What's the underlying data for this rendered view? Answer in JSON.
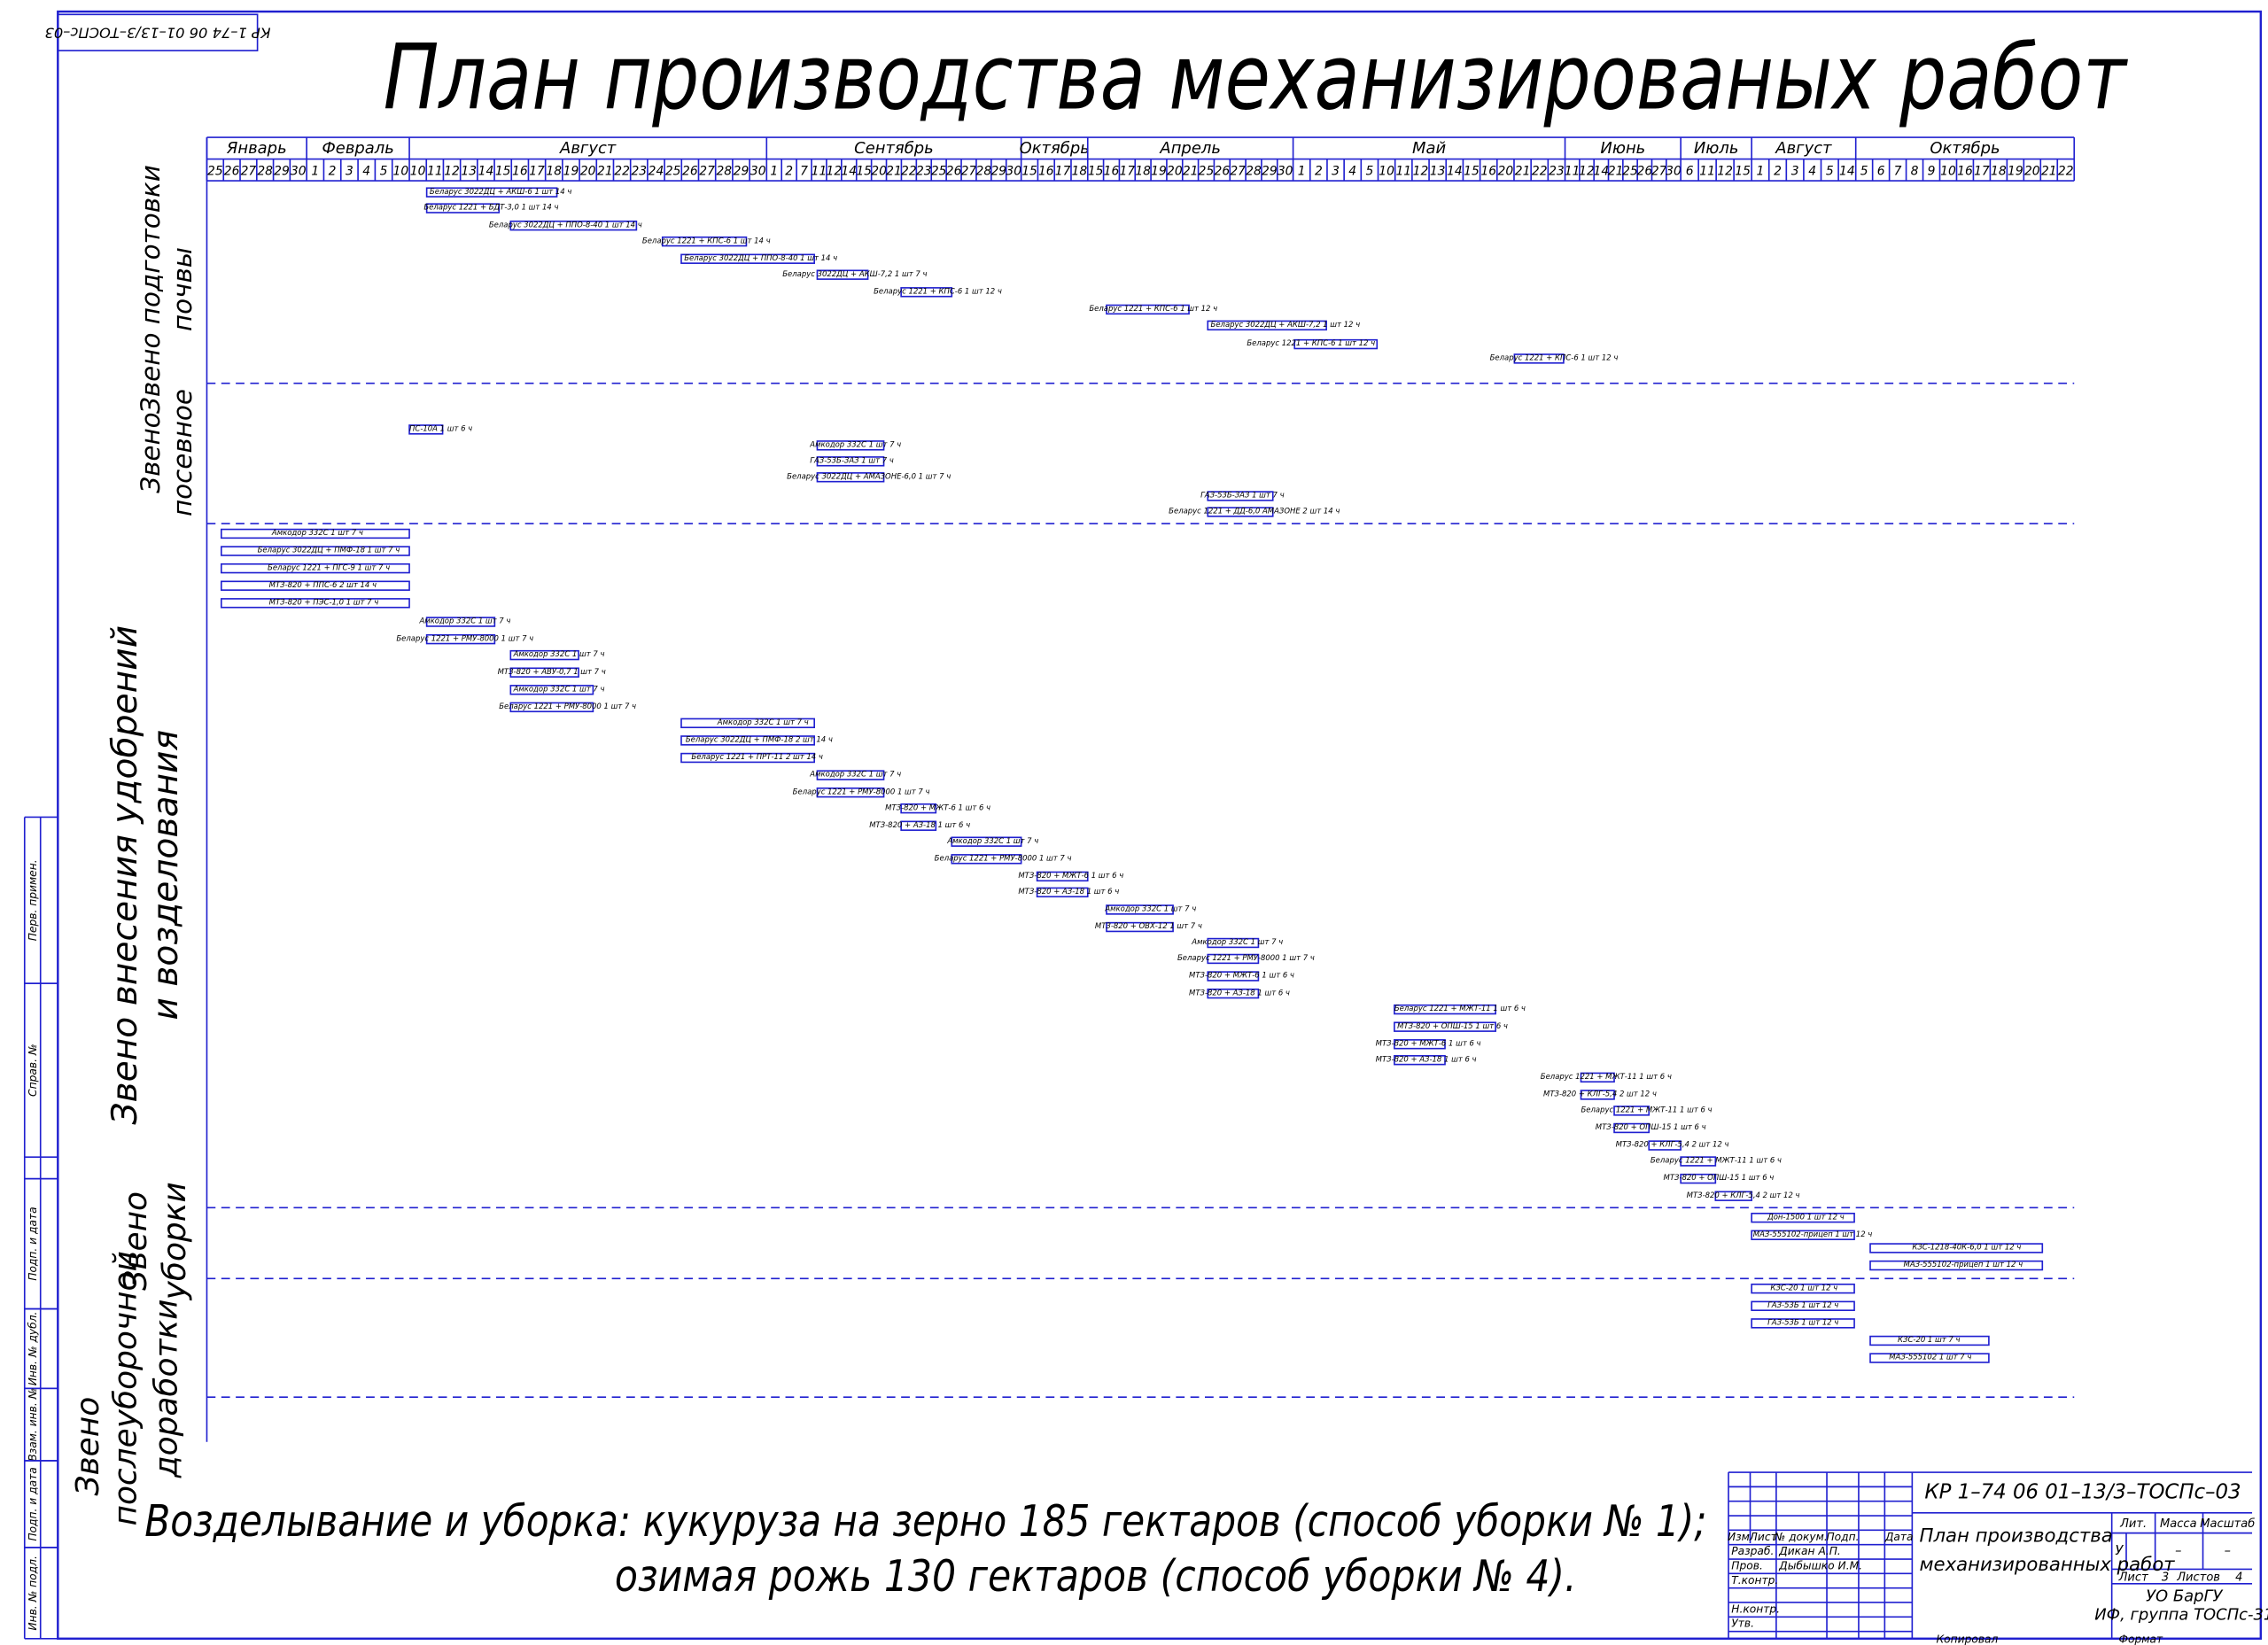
{
  "stamp_top": "КР 1–74 06 01–13/3–ТОСПс–03",
  "title": "План производства механизированых работ",
  "months": [
    {
      "name": "Январь",
      "days": [
        25,
        26,
        27,
        28,
        29,
        30
      ]
    },
    {
      "name": "Февраль",
      "days": [
        1,
        2,
        3,
        4,
        5,
        10
      ]
    },
    {
      "name": "Август",
      "days": [
        10,
        11,
        12,
        13,
        14,
        15,
        16,
        17,
        18,
        19,
        20,
        21,
        22,
        23,
        24,
        25,
        26,
        27,
        28,
        29,
        30
      ]
    },
    {
      "name": "Сентябрь",
      "days": [
        1,
        2,
        7,
        11,
        12,
        14,
        15,
        20,
        21,
        22,
        23,
        25,
        26,
        27,
        28,
        29,
        30
      ]
    },
    {
      "name": "Октябрь",
      "days": [
        15,
        16,
        17,
        18
      ]
    },
    {
      "name": "Апрель",
      "days": [
        15,
        16,
        17,
        18,
        19,
        20,
        21,
        25,
        26,
        27,
        28,
        29,
        30
      ]
    },
    {
      "name": "Май",
      "days": [
        1,
        2,
        3,
        4,
        5,
        10,
        11,
        12,
        13,
        14,
        15,
        16,
        20,
        21,
        22,
        23
      ]
    },
    {
      "name": "Июнь",
      "days": [
        11,
        12,
        14,
        21,
        25,
        26,
        27,
        30
      ]
    },
    {
      "name": "Июль",
      "days": [
        6,
        11,
        12,
        15
      ]
    },
    {
      "name": "Август",
      "days": [
        1,
        2,
        3,
        4,
        5,
        14
      ]
    },
    {
      "name": "Октябрь",
      "days": [
        5,
        6,
        7,
        8,
        9,
        10,
        16,
        17,
        18,
        19,
        20,
        21,
        22
      ]
    }
  ],
  "sections": [
    {
      "lines": [
        "Звено подготовки",
        "почвы"
      ]
    },
    {
      "lines": [
        "Звено",
        "посевное"
      ]
    },
    {
      "lines": [
        "Звено внесения удобрений",
        "и возделования"
      ]
    },
    {
      "lines": [
        "Звено",
        "уборки"
      ]
    },
    {
      "lines": [
        "Звено",
        "послеуборочной",
        "доработки"
      ]
    }
  ],
  "tasks": [
    "Беларус 3022ДЦ + АКШ-6 1 шт 14 ч",
    "Беларус 1221 + БДТ-3,0 1 шт 14 ч",
    "Беларус 3022ДЦ + ППО-8-40 1 шт 14 ч",
    "Беларус 1221 + КПС-6 1 шт 14 ч",
    "Беларус 3022ДЦ + ППО-8-40 1 шт 14 ч",
    "Беларус 3022ДЦ + АКШ-7,2 1 шт 7 ч",
    "Беларус 1221 + КПС-6 1 шт 12 ч",
    "Беларус 1221 + КПС-6 1 шт 12 ч",
    "Беларус 3022ДЦ + АКШ-7,2 1 шт 12 ч",
    "Беларус 1221 + КПС-6 1 шт 12 ч",
    "Беларус 1221 + КПС-6 1 шт 12 ч",
    "ПС-10А 1 шт 6 ч",
    "Амкодор 332С 1 шт 7 ч",
    "ГАЗ-53Б-ЗАЗ 1 шт 7 ч",
    "Беларус 3022ДЦ + АМАЗОНЕ-6,0 1 шт 7 ч",
    "ГАЗ-53Б-ЗАЗ 1 шт 7 ч",
    "Беларус 1221 + ДД-6,0 АМАЗОНЕ 2 шт 14 ч",
    "Амкодор 332С 1 шт 7 ч",
    "Беларус 3022ДЦ + ПМФ-18 1 шт 7 ч",
    "Беларус 1221 + ПГС-9 1 шт 7 ч",
    "МТЗ-820 + ППС-6 2 шт 14 ч",
    "МТЗ-820 + ПЭС-1,0 1 шт 7 ч",
    "Амкодор 332С 1 шт 7 ч",
    "Беларус 1221 + РМУ-8000 1 шт 7 ч",
    "Амкодор 332С 1 шт 7 ч",
    "МТЗ-820 + АВУ-0,7 1 шт 7 ч",
    "Амкодор 332С 1 шт 7 ч",
    "Беларус 1221 + РМУ-8000 1 шт 7 ч",
    "Амкодор 332С 1 шт 7 ч",
    "Беларус 3022ДЦ + ПМФ-18 2 шт 14 ч",
    "Беларус 1221 + ПРТ-11 2 шт 14 ч",
    "Амкодор 332С 1 шт 7 ч",
    "Беларус 1221 + РМУ-8000 1 шт 7 ч",
    "МТЗ-820 + МЖТ-6 1 шт 6 ч",
    "МТЗ-820 + АЗ-18 1 шт 6 ч",
    "Амкодор 332С 1 шт 7 ч",
    "Беларус 1221 + РМУ-8000 1 шт 7 ч",
    "МТЗ-820 + МЖТ-6 1 шт 6 ч",
    "МТЗ-820 + АЗ-18 1 шт 6 ч",
    "Амкодор 332С 1 шт 7 ч",
    "МТЗ-820 + ОВХ-12 1 шт 7 ч",
    "Амкодор 332С 1 шт 7 ч",
    "Беларус 1221 + РМУ-8000 1 шт 7 ч",
    "МТЗ-820 + МЖТ-6 1 шт 6 ч",
    "МТЗ-820 + АЗ-18 1 шт 6 ч",
    "Беларус 1221 + МЖТ-11 1 шт 6 ч",
    "МТЗ-820 + ОПШ-15 1 шт 6 ч",
    "МТЗ-820 + МЖТ-6 1 шт 6 ч",
    "МТЗ-820 + АЗ-18 1 шт 6 ч",
    "Беларус 1221 + МЖТ-11 1 шт 6 ч",
    "МТЗ-820 + КЛГ-5,4 2 шт 12 ч",
    "Беларус 1221 + МЖТ-11 1 шт 6 ч",
    "МТЗ-820 + ОПШ-15 1 шт 6 ч",
    "МТЗ-820 + КЛГ-5,4 2 шт 12 ч",
    "Беларус 1221 + МЖТ-11 1 шт 6 ч",
    "МТЗ-820 + ОПШ-15 1 шт 6 ч",
    "МТЗ-820 + КЛГ-5,4 2 шт 12 ч",
    "Дон-1500 1 шт 12 ч",
    "МАЗ-555102-прицеп 1 шт 12 ч",
    "КЗС-1218-40К-6,0 1 шт 12 ч",
    "МАЗ-555102-прицеп 1 шт 12 ч",
    "КЗС-20 1 шт 12 ч",
    "ГАЗ-53Б 1 шт 12 ч",
    "ГАЗ-53Б 1 шт 12 ч",
    "КЗС-20 1 шт 7 ч",
    "МАЗ-555102 1 шт 7 ч"
  ],
  "caption": [
    "Возделывание и уборка: кукуруза на зерно 185 гектаров (способ уборки № 1);",
    "озимая рожь 130 гектаров (способ уборки № 4)."
  ],
  "side_stamp": [
    "Перв. примен.",
    "Справ. №",
    "Подп. и дата",
    "Инв. № дубл.",
    "Взам. инв. №",
    "Подп. и дата",
    "Инв. № подл."
  ],
  "title_block": [
    "КР 1–74 06 01–13/3–ТОСПс–03",
    "План производства",
    "механизированных работ",
    "Изм",
    "Лист",
    "№ докум.",
    "Подп.",
    "Дата",
    "Разраб.",
    "Дикан А.П.",
    "Пров.",
    "Дыбышко И.М.",
    "Т.контр.",
    "Н.контр.",
    "Утв.",
    "Лит.",
    "Масса",
    "Масштаб",
    "У",
    "–",
    "–",
    "Лист",
    "3",
    "Листов",
    "4",
    "УО БарГУ",
    "ИФ, группа ТОСПс-31",
    "Копировал",
    "Формат"
  ]
}
